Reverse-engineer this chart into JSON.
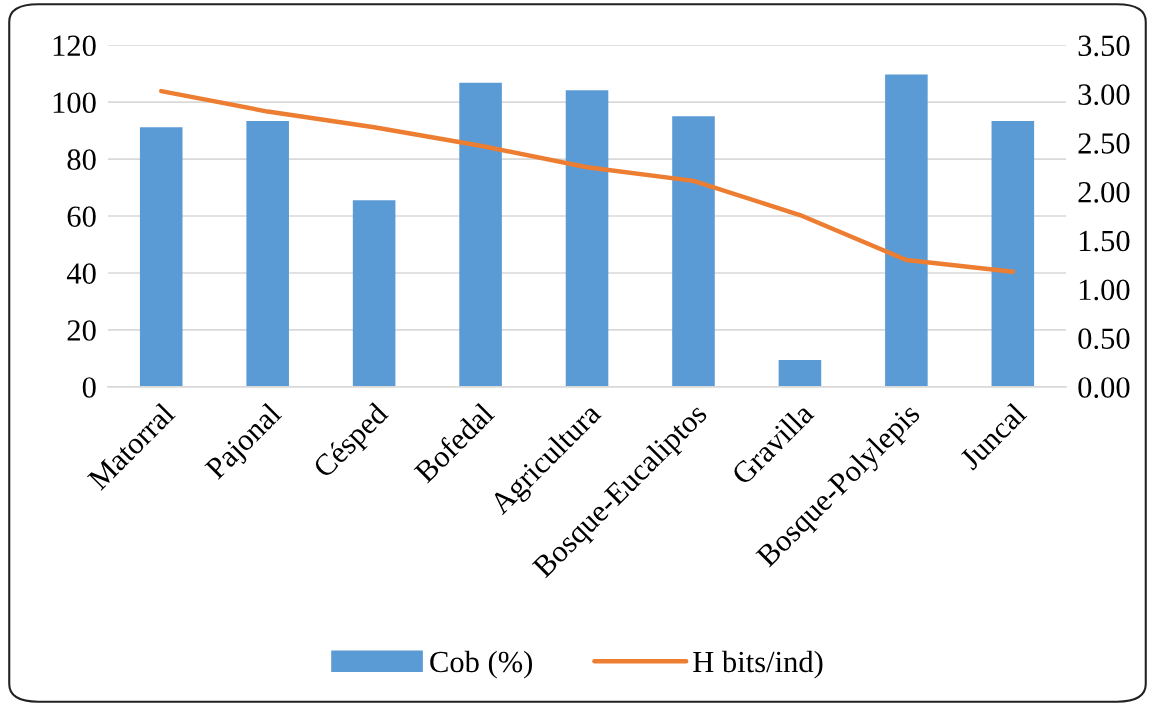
{
  "chart_data": {
    "type": "bar",
    "categories": [
      "Matorral",
      "Pajonal",
      "Césped",
      "Bofedal",
      "Agricultura",
      "Bosque-Eucaliptos",
      "Gravilla",
      "Bosque-Polylepis",
      "Juncal"
    ],
    "series": [
      {
        "name": "Cob (%)",
        "color": "#5b9bd5",
        "values": [
          91.2,
          93.4,
          65.5,
          106.8,
          104.2,
          95.0,
          9.4,
          109.7,
          93.4
        ]
      },
      {
        "name": "H bits/ind)",
        "type": "line",
        "axis": "y2",
        "color": "#ed7d31",
        "values": [
          3.03,
          2.82,
          2.66,
          2.47,
          2.25,
          2.11,
          1.76,
          1.3,
          1.18
        ]
      }
    ],
    "ylim": [
      0,
      120
    ],
    "yticks": [
      0,
      20,
      40,
      60,
      80,
      100,
      120
    ],
    "y2lim": [
      0,
      3.5
    ],
    "y2ticks": [
      {
        "value": 0,
        "label": "0.00"
      },
      {
        "value": 0.5,
        "label": "0.50"
      },
      {
        "value": 1,
        "label": "1.00"
      },
      {
        "value": 1.5,
        "label": "1.50"
      },
      {
        "value": 2,
        "label": "2.00"
      },
      {
        "value": 2.5,
        "label": "2.50"
      },
      {
        "value": 3,
        "label": "3.00"
      },
      {
        "value": 3.5,
        "label": "3.50"
      }
    ],
    "grid": "y",
    "legend": "bottom"
  }
}
